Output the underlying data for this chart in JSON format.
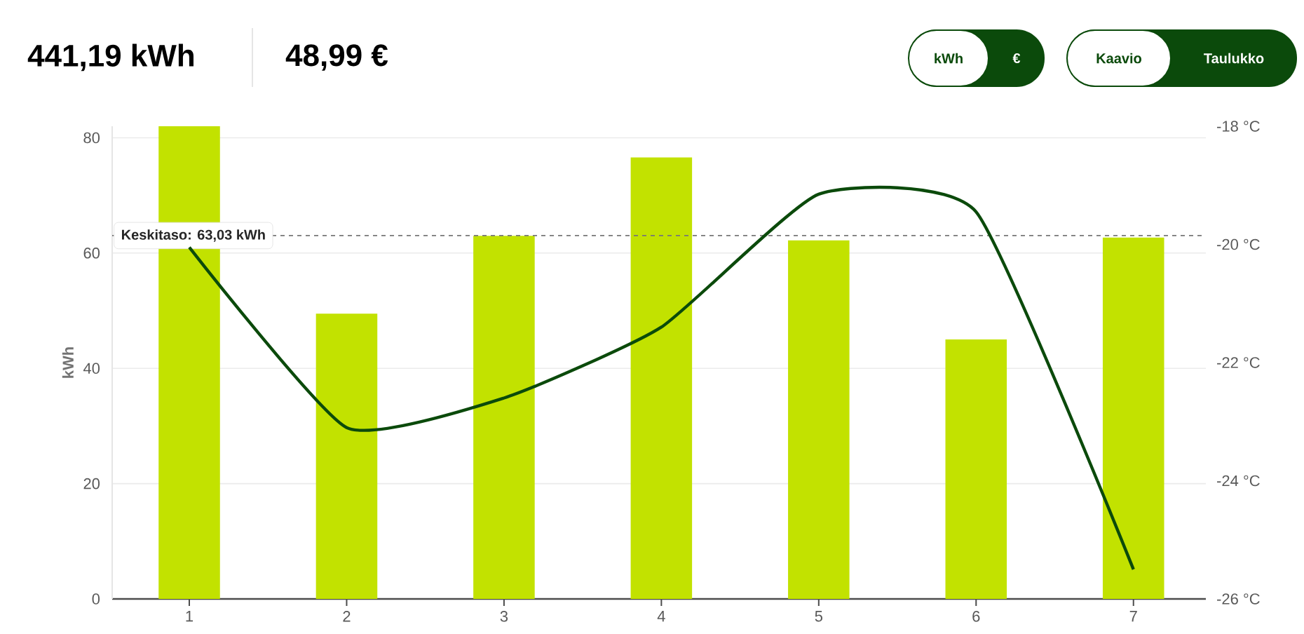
{
  "chart_data": {
    "type": "bar",
    "title": "441,19 kWh",
    "subtitle": "48,99 €",
    "ylabel": "kWh",
    "categories": [
      "1",
      "2",
      "3",
      "4",
      "5",
      "6",
      "7"
    ],
    "series": [
      {
        "color": "#c2e200",
        "values": [
          82.0,
          49.5,
          63.0,
          76.6,
          62.2,
          45.0,
          62.7
        ]
      },
      {
        "type": "line",
        "axis": "y2",
        "color": "#0b4a0b",
        "values": [
          -20.05,
          -23.1,
          -22.6,
          -21.4,
          -19.15,
          -19.45,
          -25.5
        ]
      }
    ],
    "ylim": [
      0,
      82
    ],
    "yticks": [
      0,
      20,
      40,
      60,
      80
    ],
    "y2lim": [
      -26,
      -18
    ],
    "y2ticks": [
      {
        "value": -26,
        "label": "-26 °C"
      },
      {
        "value": -24,
        "label": "-24 °C"
      },
      {
        "value": -22,
        "label": "-22 °C"
      },
      {
        "value": -20,
        "label": "-20 °C"
      },
      {
        "value": -18,
        "label": "-18 °C"
      }
    ],
    "ref_lines": [
      {
        "axis": "y",
        "value": 63.03,
        "label": "Keskitaso: 63,03 kWh",
        "color": "#777777",
        "line_style": "dashed"
      }
    ],
    "grid": "y",
    "annotations": [
      "kWh",
      "€",
      "Kaavio",
      "Taulukko"
    ]
  }
}
